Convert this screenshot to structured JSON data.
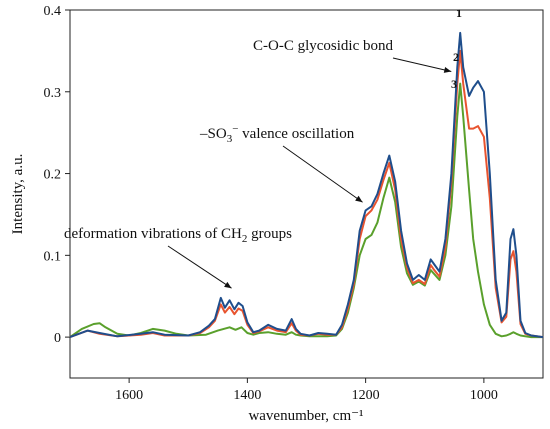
{
  "chart_data": {
    "type": "line",
    "title": "",
    "xlabel": "wavenumber, cm⁻¹",
    "ylabel": "Intensity, a.u.",
    "xlim": [
      1700,
      900
    ],
    "ylim": [
      -0.05,
      0.4
    ],
    "x_reversed": true,
    "xticks": [
      1600,
      1400,
      1200,
      1000
    ],
    "yticks": [
      0,
      0.1,
      0.2,
      0.3,
      0.4
    ],
    "xtick_labels": [
      "1600",
      "1400",
      "1200",
      "1000"
    ],
    "ytick_labels": [
      "0",
      "0.1",
      "0.2",
      "0.3",
      "0.4"
    ],
    "grid": false,
    "series": [
      {
        "name": "1",
        "color": "#1f4e8c",
        "x": [
          1700,
          1670,
          1650,
          1620,
          1580,
          1560,
          1540,
          1500,
          1480,
          1465,
          1455,
          1445,
          1438,
          1430,
          1422,
          1415,
          1408,
          1400,
          1390,
          1380,
          1365,
          1350,
          1335,
          1325,
          1318,
          1310,
          1295,
          1280,
          1265,
          1250,
          1240,
          1230,
          1220,
          1210,
          1200,
          1190,
          1180,
          1170,
          1160,
          1150,
          1140,
          1130,
          1120,
          1110,
          1100,
          1090,
          1085,
          1075,
          1065,
          1055,
          1045,
          1040,
          1035,
          1025,
          1018,
          1010,
          1000,
          990,
          980,
          970,
          962,
          955,
          950,
          945,
          938,
          930,
          920,
          900
        ],
        "values": [
          0.0,
          0.008,
          0.005,
          0.001,
          0.004,
          0.006,
          0.003,
          0.002,
          0.006,
          0.014,
          0.022,
          0.048,
          0.036,
          0.045,
          0.034,
          0.042,
          0.038,
          0.018,
          0.006,
          0.008,
          0.015,
          0.01,
          0.008,
          0.022,
          0.01,
          0.004,
          0.002,
          0.005,
          0.004,
          0.003,
          0.015,
          0.04,
          0.07,
          0.13,
          0.155,
          0.16,
          0.175,
          0.2,
          0.222,
          0.19,
          0.13,
          0.09,
          0.07,
          0.076,
          0.07,
          0.095,
          0.09,
          0.08,
          0.12,
          0.2,
          0.33,
          0.372,
          0.33,
          0.295,
          0.305,
          0.313,
          0.3,
          0.2,
          0.07,
          0.02,
          0.03,
          0.12,
          0.132,
          0.1,
          0.02,
          0.005,
          0.002,
          0.0
        ]
      },
      {
        "name": "2",
        "color": "#e8542f",
        "x": [
          1700,
          1670,
          1650,
          1620,
          1580,
          1560,
          1540,
          1500,
          1480,
          1465,
          1455,
          1445,
          1438,
          1430,
          1422,
          1415,
          1408,
          1400,
          1390,
          1380,
          1365,
          1350,
          1335,
          1325,
          1318,
          1310,
          1295,
          1280,
          1265,
          1250,
          1240,
          1230,
          1220,
          1210,
          1200,
          1190,
          1180,
          1170,
          1160,
          1150,
          1140,
          1130,
          1120,
          1110,
          1100,
          1090,
          1085,
          1075,
          1065,
          1055,
          1045,
          1040,
          1035,
          1025,
          1018,
          1010,
          1000,
          990,
          980,
          970,
          962,
          955,
          950,
          945,
          938,
          930,
          920,
          900
        ],
        "values": [
          0.0,
          0.008,
          0.004,
          0.001,
          0.003,
          0.005,
          0.002,
          0.002,
          0.005,
          0.012,
          0.02,
          0.04,
          0.03,
          0.037,
          0.028,
          0.035,
          0.032,
          0.015,
          0.005,
          0.007,
          0.012,
          0.008,
          0.006,
          0.017,
          0.008,
          0.003,
          0.002,
          0.004,
          0.003,
          0.003,
          0.012,
          0.035,
          0.065,
          0.12,
          0.148,
          0.155,
          0.168,
          0.192,
          0.213,
          0.18,
          0.12,
          0.085,
          0.066,
          0.07,
          0.065,
          0.088,
          0.083,
          0.074,
          0.11,
          0.19,
          0.31,
          0.35,
          0.31,
          0.255,
          0.255,
          0.258,
          0.245,
          0.17,
          0.06,
          0.018,
          0.025,
          0.095,
          0.105,
          0.08,
          0.016,
          0.004,
          0.002,
          0.0
        ]
      },
      {
        "name": "3",
        "color": "#5aa02c",
        "x": [
          1700,
          1680,
          1660,
          1650,
          1640,
          1620,
          1600,
          1580,
          1560,
          1540,
          1520,
          1500,
          1470,
          1450,
          1440,
          1430,
          1420,
          1410,
          1400,
          1390,
          1380,
          1365,
          1350,
          1335,
          1325,
          1318,
          1310,
          1295,
          1280,
          1265,
          1250,
          1240,
          1230,
          1220,
          1210,
          1200,
          1190,
          1180,
          1170,
          1160,
          1150,
          1140,
          1130,
          1120,
          1110,
          1100,
          1090,
          1085,
          1075,
          1065,
          1055,
          1045,
          1040,
          1035,
          1025,
          1018,
          1010,
          1000,
          990,
          980,
          970,
          962,
          955,
          950,
          945,
          938,
          930,
          920,
          900
        ],
        "values": [
          0.0,
          0.01,
          0.016,
          0.017,
          0.012,
          0.004,
          0.002,
          0.005,
          0.01,
          0.008,
          0.004,
          0.002,
          0.003,
          0.008,
          0.01,
          0.012,
          0.009,
          0.012,
          0.005,
          0.003,
          0.005,
          0.006,
          0.004,
          0.003,
          0.006,
          0.003,
          0.002,
          0.001,
          0.001,
          0.001,
          0.002,
          0.01,
          0.03,
          0.06,
          0.1,
          0.12,
          0.125,
          0.14,
          0.17,
          0.195,
          0.165,
          0.11,
          0.078,
          0.064,
          0.068,
          0.063,
          0.082,
          0.078,
          0.07,
          0.1,
          0.16,
          0.27,
          0.31,
          0.27,
          0.18,
          0.12,
          0.08,
          0.04,
          0.015,
          0.004,
          0.001,
          0.002,
          0.004,
          0.006,
          0.004,
          0.002,
          0.001,
          0.0,
          0.0
        ]
      }
    ],
    "annotations": [
      {
        "text": "C-O-C glycosidic bond",
        "arrow_to": [
          1045,
          0.315
        ]
      },
      {
        "text_main": "–SO",
        "text_sub": "3",
        "text_sup": "−",
        "text_rest": " valence oscillation",
        "arrow_to": [
          1195,
          0.16
        ]
      },
      {
        "text_main": "deformation vibrations of CH",
        "text_sub": "2",
        "text_rest": " groups",
        "arrow_to": [
          1420,
          0.05
        ]
      }
    ],
    "curve_labels": [
      "1",
      "2",
      "3"
    ]
  }
}
